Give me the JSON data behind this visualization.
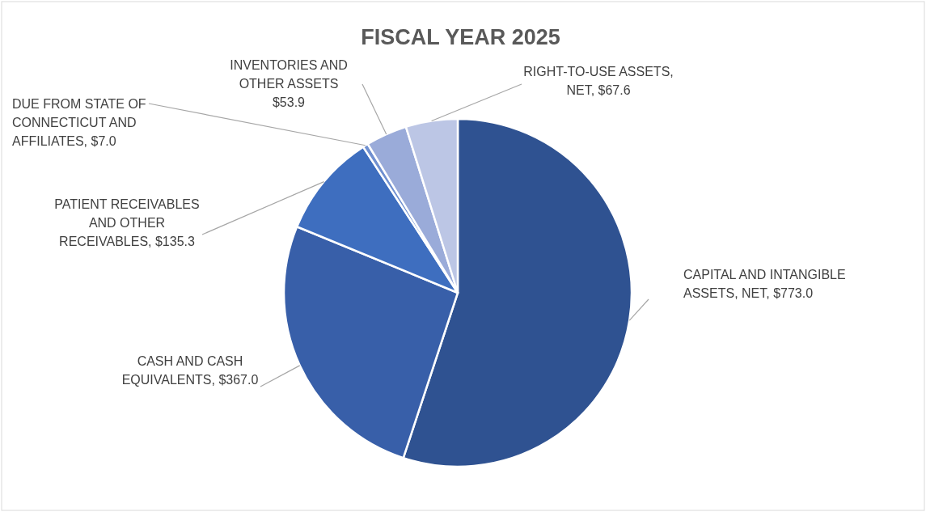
{
  "chart_data": {
    "type": "pie",
    "title": "FISCAL YEAR 2025",
    "categories": [
      "CAPITAL AND INTANGIBLE ASSETS, NET",
      "CASH AND CASH EQUIVALENTS",
      "PATIENT RECEIVABLES AND OTHER RECEIVABLES",
      "DUE FROM STATE OF CONNECTICUT AND AFFILIATES",
      "INVENTORIES AND OTHER ASSETS",
      "RIGHT-TO-USE ASSETS, NET"
    ],
    "values": [
      773.0,
      367.0,
      135.3,
      7.0,
      53.9,
      67.6
    ],
    "value_labels": [
      "$773.0",
      "$367.0",
      "$135.3",
      "$7.0",
      "$53.9",
      "$67.6"
    ],
    "colors": [
      "#2f5291",
      "#385fa9",
      "#3e6ebf",
      "#7090d0",
      "#9aabd9",
      "#bcc6e5"
    ]
  }
}
